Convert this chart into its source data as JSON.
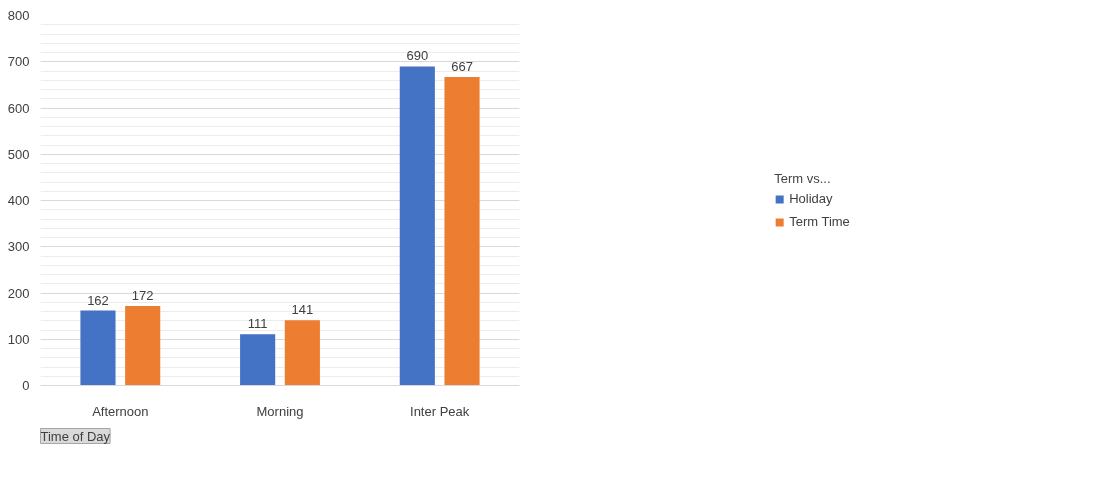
{
  "chart_data": {
    "type": "bar",
    "categories": [
      "Afternoon",
      "Morning",
      "Inter Peak"
    ],
    "series": [
      {
        "name": "Holiday",
        "color": "#4472c4",
        "values": [
          162,
          111,
          690
        ]
      },
      {
        "name": "Term Time",
        "color": "#ed7d31",
        "values": [
          172,
          141,
          667
        ]
      }
    ],
    "ylim": [
      0,
      800
    ],
    "yticks": [
      0,
      100,
      200,
      300,
      400,
      500,
      600,
      700,
      800
    ],
    "grid": "y",
    "legend": "right",
    "legend_title": "Term vs...",
    "data_labels": true,
    "annotations": [
      "Time of Day"
    ]
  }
}
